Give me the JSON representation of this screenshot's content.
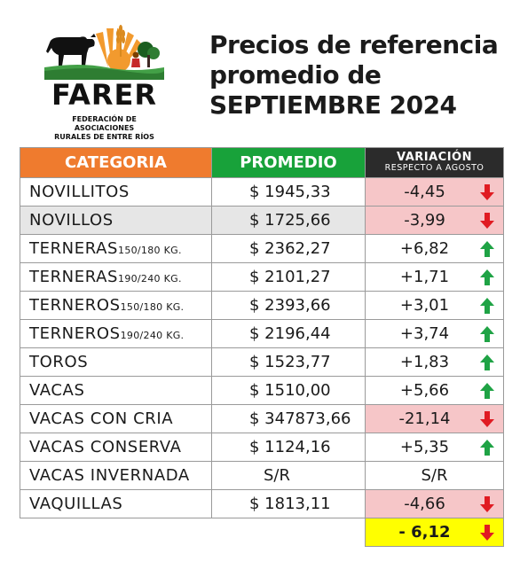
{
  "logo": {
    "name": "FARER",
    "subtitle_line1": "FEDERACIÓN DE ASOCIACIONES",
    "subtitle_line2": "RURALES DE ENTRE RÍOS"
  },
  "title": {
    "line1": "Precios de referencia",
    "line2": "promedio de",
    "line3": "SEPTIEMBRE 2024"
  },
  "table": {
    "headers": {
      "categoria": "CATEGORIA",
      "promedio": "PROMEDIO",
      "variacion": "VARIACIÓN",
      "variacion_sub": "RESPECTO A  AGOSTO"
    },
    "rows": [
      {
        "name": "NOVILLITOS",
        "suffix": "",
        "price": "$ 1945,33",
        "variation": "-4,45",
        "trend": "down"
      },
      {
        "name": "NOVILLOS",
        "suffix": "",
        "price": "$ 1725,66",
        "variation": "-3,99",
        "trend": "down"
      },
      {
        "name": "TERNERAS",
        "suffix": "150/180 KG.",
        "price": "$ 2362,27",
        "variation": "+6,82",
        "trend": "up"
      },
      {
        "name": "TERNERAS",
        "suffix": "190/240 KG.",
        "price": "$ 2101,27",
        "variation": "+1,71",
        "trend": "up"
      },
      {
        "name": "TERNEROS",
        "suffix": "150/180 KG.",
        "price": "$ 2393,66",
        "variation": "+3,01",
        "trend": "up"
      },
      {
        "name": "TERNEROS",
        "suffix": "190/240 KG.",
        "price": "$ 2196,44",
        "variation": "+3,74",
        "trend": "up"
      },
      {
        "name": "TOROS",
        "suffix": "",
        "price": "$ 1523,77",
        "variation": "+1,83",
        "trend": "up"
      },
      {
        "name": "VACAS",
        "suffix": "",
        "price": "$ 1510,00",
        "variation": "+5,66",
        "trend": "up"
      },
      {
        "name": "VACAS CON CRIA",
        "suffix": "",
        "price": "$ 347873,66",
        "variation": "-21,14",
        "trend": "down"
      },
      {
        "name": "VACAS CONSERVA",
        "suffix": "",
        "price": "$ 1124,16",
        "variation": "+5,35",
        "trend": "up"
      },
      {
        "name": "VACAS INVERNADA",
        "suffix": "",
        "price": "S/R",
        "variation": "S/R",
        "trend": "none"
      },
      {
        "name": "VAQUILLAS",
        "suffix": "",
        "price": "$ 1813,11",
        "variation": "-4,66",
        "trend": "down"
      }
    ],
    "total": {
      "variation": "- 6,12",
      "trend": "down"
    }
  },
  "colors": {
    "categoria_header": "#ef7b2e",
    "promedio_header": "#18a23a",
    "variacion_header": "#2b2b2b",
    "negative_bg": "#f6c6c8",
    "total_bg": "#ffff00",
    "arrow_up": "#1fa345",
    "arrow_down": "#e01b22",
    "logo_sun": "#f29a2e"
  },
  "icons": {
    "up": "arrow-up-icon",
    "down": "arrow-down-icon"
  }
}
